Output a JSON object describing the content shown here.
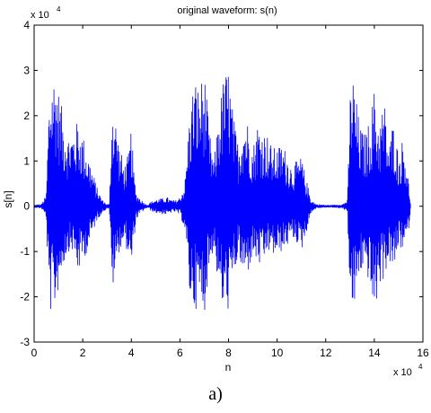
{
  "chart_data": {
    "type": "line",
    "title": "original waveform: s(n)",
    "xlabel": "n",
    "ylabel": "s[n]",
    "x_multiplier": "x 10",
    "x_multiplier_exp": "4",
    "y_multiplier": "x 10",
    "y_multiplier_exp": "4",
    "xlim": [
      0,
      160000
    ],
    "ylim": [
      -30000,
      40000
    ],
    "x_ticks": [
      0,
      20000,
      40000,
      60000,
      80000,
      100000,
      120000,
      140000,
      160000
    ],
    "x_tick_labels": [
      "0",
      "2",
      "4",
      "6",
      "8",
      "10",
      "12",
      "14",
      "16"
    ],
    "y_ticks": [
      -30000,
      -20000,
      -10000,
      0,
      10000,
      20000,
      30000,
      40000
    ],
    "y_tick_labels": [
      "-3",
      "-2",
      "-1",
      "0",
      "1",
      "2",
      "3",
      "4"
    ],
    "grid": false,
    "series": [
      {
        "color": "#0000ff",
        "envelope": {
          "x": [
            0,
            3000,
            5000,
            6000,
            7000,
            9000,
            10000,
            12000,
            14000,
            16000,
            18000,
            20000,
            22000,
            24000,
            26000,
            28000,
            30000,
            31000,
            32000,
            33000,
            35000,
            37000,
            39000,
            40000,
            41000,
            42000,
            44000,
            46000,
            47000,
            48000,
            50000,
            53000,
            55000,
            56000,
            58000,
            60000,
            62000,
            64000,
            66000,
            68000,
            70000,
            72000,
            74000,
            76000,
            78000,
            80000,
            82000,
            84000,
            86000,
            88000,
            90000,
            92000,
            94000,
            96000,
            98000,
            100000,
            102000,
            104000,
            106000,
            108000,
            110000,
            112000,
            114000,
            116000,
            118000,
            120000,
            122000,
            125000,
            127000,
            129000,
            130000,
            131000,
            132000,
            134000,
            136000,
            138000,
            140000,
            142000,
            144000,
            146000,
            148000,
            150000,
            152000,
            154000,
            155000
          ],
          "upper": [
            300,
            500,
            2500,
            22000,
            29000,
            30000,
            26000,
            20000,
            16000,
            17000,
            19000,
            16000,
            12000,
            8000,
            4000,
            1500,
            500,
            500,
            24000,
            22000,
            14000,
            9000,
            12000,
            18000,
            8000,
            3000,
            1500,
            500,
            400,
            1000,
            1500,
            1800,
            2000,
            1500,
            1300,
            2000,
            5000,
            21000,
            29000,
            26000,
            31000,
            17000,
            10000,
            21000,
            29000,
            31000,
            20000,
            14000,
            20000,
            19000,
            13000,
            19000,
            17000,
            16000,
            13000,
            13000,
            14000,
            12000,
            9000,
            10000,
            11000,
            6000,
            1500,
            500,
            400,
            300,
            300,
            400,
            500,
            1500,
            25000,
            30000,
            26000,
            18000,
            16000,
            19000,
            26000,
            18000,
            24000,
            13000,
            20000,
            11000,
            16000,
            6000,
            500
          ],
          "lower": [
            -300,
            -500,
            -2500,
            -21000,
            -24000,
            -22000,
            -18000,
            -13000,
            -10000,
            -10000,
            -15000,
            -12000,
            -10000,
            -6000,
            -3000,
            -1500,
            -500,
            -500,
            -20000,
            -16000,
            -10000,
            -8000,
            -11000,
            -15000,
            -8000,
            -3000,
            -1500,
            -500,
            -400,
            -1000,
            -1500,
            -1800,
            -2000,
            -1500,
            -1300,
            -2000,
            -5000,
            -20000,
            -23000,
            -22000,
            -24000,
            -14000,
            -9000,
            -19000,
            -24000,
            -23000,
            -17000,
            -11000,
            -16000,
            -15000,
            -11000,
            -13000,
            -14000,
            -10000,
            -11000,
            -11000,
            -10000,
            -9000,
            -7000,
            -8000,
            -10000,
            -6000,
            -1500,
            -500,
            -400,
            -300,
            -300,
            -400,
            -500,
            -1500,
            -22000,
            -25000,
            -22000,
            -15000,
            -14000,
            -17000,
            -25000,
            -18000,
            -16000,
            -12000,
            -15000,
            -9000,
            -10000,
            -6000,
            -500
          ]
        }
      }
    ]
  },
  "caption": "a)"
}
